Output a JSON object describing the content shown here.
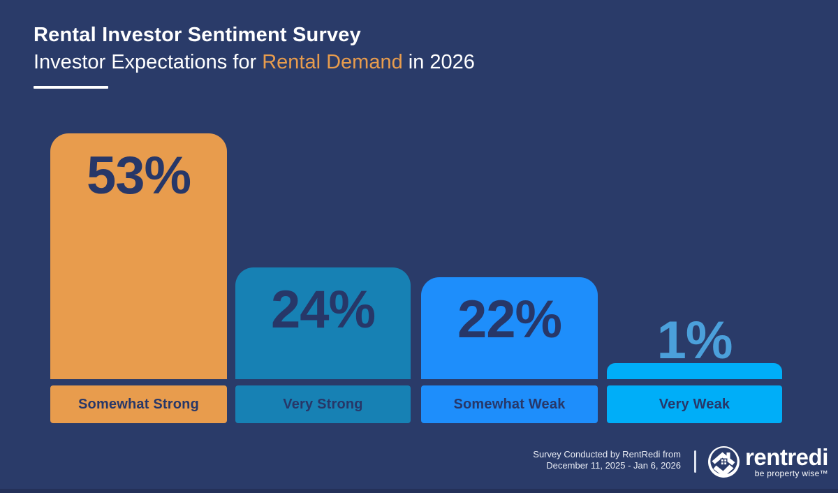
{
  "header": {
    "title": "Rental Investor Sentiment Survey",
    "subtitle_prefix": "Investor Expectations for ",
    "subtitle_highlight": "Rental Demand",
    "subtitle_suffix": " in 2026"
  },
  "chart_data": {
    "type": "bar",
    "title": "Rental Investor Sentiment Survey",
    "subtitle": "Investor Expectations for Rental Demand in 2026",
    "categories": [
      "Somewhat Strong",
      "Very Strong",
      "Somewhat Weak",
      "Very Weak"
    ],
    "values": [
      53,
      24,
      22,
      1
    ],
    "value_labels": [
      "53%",
      "24%",
      "22%",
      "1%"
    ],
    "unit": "percent",
    "bar_colors": [
      "#E89C4D",
      "#1781B4",
      "#1E8EFB",
      "#00AEF8"
    ],
    "value_label_colors": [
      "#273768",
      "#273768",
      "#273768",
      "#4BA0DB"
    ],
    "category_label_color": "#273768",
    "legend": "none",
    "grid": false,
    "axes_shown": false
  },
  "footer": {
    "note_line1": "Survey Conducted by RentRedi from",
    "note_line2": "December 11, 2025 - Jan 6, 2026",
    "brand_name": "rentredi",
    "brand_tagline": "be property wise™"
  },
  "colors": {
    "background": "#2A3B69",
    "title_text": "#FFFFFF",
    "subtitle_highlight": "#E89C4D",
    "accent_orange": "#E89C4D",
    "accent_teal": "#1781B4",
    "accent_blue": "#1E8EFB",
    "accent_cyan": "#00AEF8",
    "dark_navy_text": "#273768"
  }
}
